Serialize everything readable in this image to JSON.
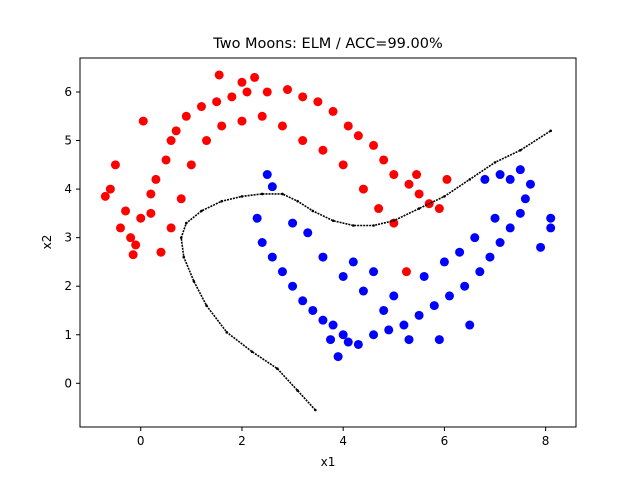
{
  "chart_data": {
    "type": "scatter",
    "title": "Two Moons: ELM / ACC=99.00%",
    "xlabel": "x1",
    "ylabel": "x2",
    "xlim": [
      -1.2,
      8.6
    ],
    "ylim": [
      -0.9,
      6.7
    ],
    "xticks": [
      0,
      2,
      4,
      6,
      8
    ],
    "yticks": [
      0,
      1,
      2,
      3,
      4,
      5,
      6
    ],
    "grid": false,
    "legend": "none",
    "colors": {
      "class_a": "#ff0000",
      "class_b": "#0000ff",
      "boundary": "#000000",
      "axes": "#000000"
    },
    "series": [
      {
        "marker": "circle",
        "color": "#ff0000",
        "points": [
          [
            1.55,
            6.35
          ],
          [
            2.0,
            6.2
          ],
          [
            2.25,
            6.3
          ],
          [
            0.05,
            5.4
          ],
          [
            0.6,
            5.0
          ],
          [
            0.7,
            5.2
          ],
          [
            0.9,
            5.5
          ],
          [
            1.2,
            5.7
          ],
          [
            1.5,
            5.8
          ],
          [
            1.8,
            5.9
          ],
          [
            2.1,
            6.0
          ],
          [
            2.5,
            6.0
          ],
          [
            2.9,
            6.05
          ],
          [
            3.2,
            5.9
          ],
          [
            3.5,
            5.8
          ],
          [
            3.8,
            5.6
          ],
          [
            4.1,
            5.3
          ],
          [
            4.3,
            5.1
          ],
          [
            4.6,
            4.9
          ],
          [
            4.8,
            4.6
          ],
          [
            5.0,
            4.3
          ],
          [
            5.3,
            4.1
          ],
          [
            5.5,
            3.9
          ],
          [
            5.7,
            3.7
          ],
          [
            5.9,
            3.6
          ],
          [
            6.05,
            4.2
          ],
          [
            5.45,
            4.3
          ],
          [
            -0.5,
            4.5
          ],
          [
            -0.6,
            4.0
          ],
          [
            -0.7,
            3.85
          ],
          [
            -0.4,
            3.2
          ],
          [
            -0.2,
            3.0
          ],
          [
            -0.15,
            2.65
          ],
          [
            -0.1,
            2.85
          ],
          [
            0.4,
            2.7
          ],
          [
            0.0,
            3.4
          ],
          [
            0.2,
            3.9
          ],
          [
            0.3,
            4.2
          ],
          [
            0.5,
            4.6
          ],
          [
            0.2,
            3.5
          ],
          [
            -0.3,
            3.55
          ],
          [
            0.6,
            3.2
          ],
          [
            0.8,
            3.8
          ],
          [
            1.0,
            4.5
          ],
          [
            1.3,
            5.0
          ],
          [
            1.6,
            5.3
          ],
          [
            2.0,
            5.4
          ],
          [
            2.4,
            5.5
          ],
          [
            2.8,
            5.3
          ],
          [
            3.2,
            5.0
          ],
          [
            3.6,
            4.8
          ],
          [
            4.0,
            4.5
          ],
          [
            4.4,
            4.0
          ],
          [
            4.7,
            3.6
          ],
          [
            5.0,
            3.3
          ],
          [
            5.25,
            2.3
          ]
        ]
      },
      {
        "marker": "circle",
        "color": "#0000ff",
        "points": [
          [
            2.5,
            4.3
          ],
          [
            2.6,
            4.05
          ],
          [
            2.3,
            3.4
          ],
          [
            2.4,
            2.9
          ],
          [
            2.6,
            2.6
          ],
          [
            2.8,
            2.3
          ],
          [
            3.0,
            2.0
          ],
          [
            3.2,
            1.7
          ],
          [
            3.4,
            1.5
          ],
          [
            3.6,
            1.3
          ],
          [
            3.8,
            1.2
          ],
          [
            4.0,
            1.0
          ],
          [
            4.1,
            0.85
          ],
          [
            3.75,
            0.9
          ],
          [
            3.9,
            0.55
          ],
          [
            4.3,
            0.8
          ],
          [
            4.6,
            1.0
          ],
          [
            4.9,
            1.1
          ],
          [
            5.2,
            1.2
          ],
          [
            5.5,
            1.4
          ],
          [
            5.8,
            1.6
          ],
          [
            6.1,
            1.8
          ],
          [
            6.4,
            2.0
          ],
          [
            6.7,
            2.3
          ],
          [
            6.9,
            2.6
          ],
          [
            7.1,
            2.9
          ],
          [
            7.3,
            3.2
          ],
          [
            7.5,
            3.5
          ],
          [
            7.6,
            3.8
          ],
          [
            7.7,
            4.1
          ],
          [
            7.3,
            4.2
          ],
          [
            7.5,
            4.4
          ],
          [
            7.1,
            4.3
          ],
          [
            6.8,
            4.2
          ],
          [
            8.1,
            3.4
          ],
          [
            8.1,
            3.2
          ],
          [
            7.9,
            2.8
          ],
          [
            6.5,
            1.2
          ],
          [
            5.9,
            0.9
          ],
          [
            5.3,
            0.9
          ],
          [
            4.8,
            1.5
          ],
          [
            4.4,
            1.9
          ],
          [
            4.0,
            2.2
          ],
          [
            3.6,
            2.6
          ],
          [
            3.3,
            3.1
          ],
          [
            3.0,
            3.3
          ],
          [
            5.0,
            1.8
          ],
          [
            5.6,
            2.2
          ],
          [
            6.0,
            2.5
          ],
          [
            6.3,
            2.7
          ],
          [
            6.6,
            3.0
          ],
          [
            7.0,
            3.4
          ],
          [
            4.6,
            2.3
          ],
          [
            4.2,
            2.5
          ]
        ]
      },
      {
        "marker": "line",
        "color": "#000000",
        "points": [
          [
            3.45,
            -0.55
          ],
          [
            3.1,
            -0.15
          ],
          [
            2.7,
            0.3
          ],
          [
            2.2,
            0.65
          ],
          [
            1.7,
            1.05
          ],
          [
            1.3,
            1.6
          ],
          [
            1.05,
            2.1
          ],
          [
            0.85,
            2.6
          ],
          [
            0.8,
            3.0
          ],
          [
            0.9,
            3.3
          ],
          [
            1.2,
            3.55
          ],
          [
            1.6,
            3.75
          ],
          [
            2.0,
            3.85
          ],
          [
            2.4,
            3.9
          ],
          [
            2.8,
            3.9
          ],
          [
            3.1,
            3.75
          ],
          [
            3.4,
            3.55
          ],
          [
            3.8,
            3.35
          ],
          [
            4.2,
            3.25
          ],
          [
            4.6,
            3.25
          ],
          [
            5.0,
            3.35
          ],
          [
            5.5,
            3.6
          ],
          [
            6.0,
            3.85
          ],
          [
            6.5,
            4.2
          ],
          [
            7.0,
            4.55
          ],
          [
            7.5,
            4.8
          ],
          [
            8.1,
            5.2
          ]
        ]
      }
    ]
  }
}
